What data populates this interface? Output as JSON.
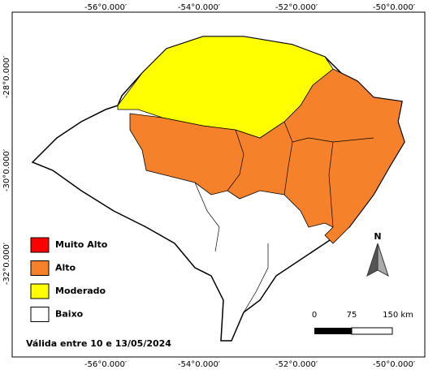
{
  "map": {
    "top_labels": [
      "-56°0.000′",
      "-54°0.000′",
      "-52°0.000′",
      "-50°0.000′"
    ],
    "bottom_labels": [
      "-56°0.000′",
      "-54°0.000′",
      "-52°0.000′",
      "-50°0.000′"
    ],
    "left_labels": [
      "-28°0.000′",
      "-30°0.000′",
      "-32°0.000′"
    ],
    "legend": [
      {
        "label": "Muito Alto",
        "color": "#ff0000"
      },
      {
        "label": "Alto",
        "color": "#f5822a"
      },
      {
        "label": "Moderado",
        "color": "#ffff00"
      },
      {
        "label": "Baixo",
        "color": "#ffffff"
      }
    ],
    "validity": "Válida entre 10 e 13/05/2024",
    "scale_labels": [
      "0",
      "75",
      "150 km"
    ],
    "north": "N"
  }
}
